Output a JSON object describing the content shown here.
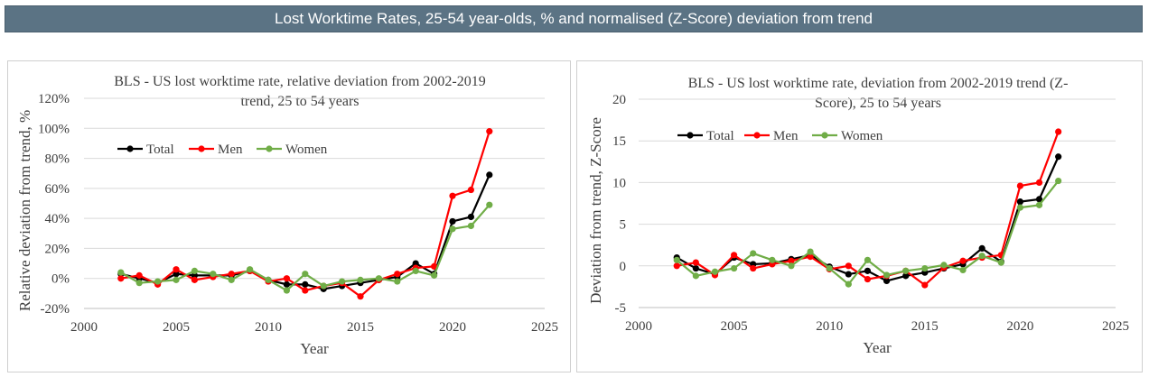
{
  "header": {
    "title": "Lost Worktime Rates, 25-54 year-olds, % and normalised (Z-Score) deviation from trend"
  },
  "colors": {
    "banner": "#5b7384",
    "total": "#000000",
    "men": "#ff0000",
    "women": "#70ad47",
    "grid": "#d9d9d9"
  },
  "chart_data": [
    {
      "type": "line",
      "title": "BLS - US lost worktime rate, relative deviation from 2002-2019 trend, 25 to 54 years",
      "title_lines": [
        "BLS - US lost worktime rate, relative deviation from 2002-2019",
        "trend, 25 to 54 years"
      ],
      "xlabel": "Year",
      "ylabel": "Relative deviation from trend, %",
      "xlim": [
        2000,
        2025
      ],
      "ylim": [
        -20,
        120
      ],
      "x_ticks": [
        2000,
        2005,
        2010,
        2015,
        2020,
        2025
      ],
      "y_ticks": [
        -20,
        0,
        20,
        40,
        60,
        80,
        100,
        120
      ],
      "y_tick_labels": [
        "-20%",
        "0%",
        "20%",
        "40%",
        "60%",
        "80%",
        "100%",
        "120%"
      ],
      "grid": "horizontal",
      "legend": "top-left",
      "x": [
        2002,
        2003,
        2004,
        2005,
        2006,
        2007,
        2008,
        2009,
        2010,
        2011,
        2012,
        2013,
        2014,
        2015,
        2016,
        2017,
        2018,
        2019,
        2020,
        2021,
        2022
      ],
      "series": [
        {
          "name": "Total",
          "color": "#000000",
          "values": [
            3,
            0,
            -3,
            3,
            2,
            2,
            2,
            5,
            -1,
            -4,
            -4,
            -7,
            -5,
            -3,
            -1,
            1,
            10,
            3,
            38,
            41,
            69
          ]
        },
        {
          "name": "Men",
          "color": "#ff0000",
          "values": [
            0,
            2,
            -4,
            6,
            -1,
            1,
            3,
            5,
            -2,
            0,
            -8,
            -5,
            -3,
            -12,
            -1,
            3,
            7,
            8,
            55,
            59,
            98
          ]
        },
        {
          "name": "Women",
          "color": "#70ad47",
          "values": [
            4,
            -3,
            -2,
            -1,
            5,
            3,
            -1,
            6,
            -1,
            -8,
            3,
            -5,
            -2,
            -1,
            0,
            -2,
            5,
            2,
            33,
            35,
            49
          ]
        }
      ]
    },
    {
      "type": "line",
      "title": "BLS - US lost worktime rate, deviation from 2002-2019 trend (Z-Score), 25 to 54 years",
      "title_lines": [
        "BLS - US lost worktime rate, deviation from 2002-2019 trend (Z-",
        "Score), 25 to 54 years"
      ],
      "xlabel": "Year",
      "ylabel": "Deviation from trend, Z-Score",
      "xlim": [
        2000,
        2025
      ],
      "ylim": [
        -5,
        20
      ],
      "x_ticks": [
        2000,
        2005,
        2010,
        2015,
        2020,
        2025
      ],
      "y_ticks": [
        -5,
        0,
        5,
        10,
        15,
        20
      ],
      "y_tick_labels": [
        "-5",
        "0",
        "5",
        "10",
        "15",
        "20"
      ],
      "grid": "horizontal",
      "legend": "top-left",
      "x": [
        2002,
        2003,
        2004,
        2005,
        2006,
        2007,
        2008,
        2009,
        2010,
        2011,
        2012,
        2013,
        2014,
        2015,
        2016,
        2017,
        2018,
        2019,
        2020,
        2021,
        2022
      ],
      "series": [
        {
          "name": "Total",
          "color": "#000000",
          "values": [
            1.0,
            -0.3,
            -1.0,
            1.0,
            0.2,
            0.3,
            0.8,
            1.3,
            -0.1,
            -1.0,
            -0.6,
            -1.8,
            -1.2,
            -0.8,
            -0.3,
            0.2,
            2.1,
            0.5,
            7.7,
            8.0,
            13.1
          ]
        },
        {
          "name": "Men",
          "color": "#ff0000",
          "values": [
            0.0,
            0.4,
            -1.1,
            1.3,
            -0.3,
            0.2,
            0.6,
            1.1,
            -0.4,
            0.0,
            -1.6,
            -1.2,
            -0.6,
            -2.3,
            -0.2,
            0.6,
            1.0,
            1.3,
            9.6,
            10.0,
            16.1
          ]
        },
        {
          "name": "Women",
          "color": "#70ad47",
          "values": [
            0.7,
            -1.2,
            -0.7,
            -0.3,
            1.5,
            0.7,
            0.0,
            1.7,
            -0.3,
            -2.2,
            0.7,
            -1.1,
            -0.6,
            -0.3,
            0.1,
            -0.5,
            1.2,
            0.4,
            7.0,
            7.3,
            10.2
          ]
        }
      ]
    }
  ]
}
